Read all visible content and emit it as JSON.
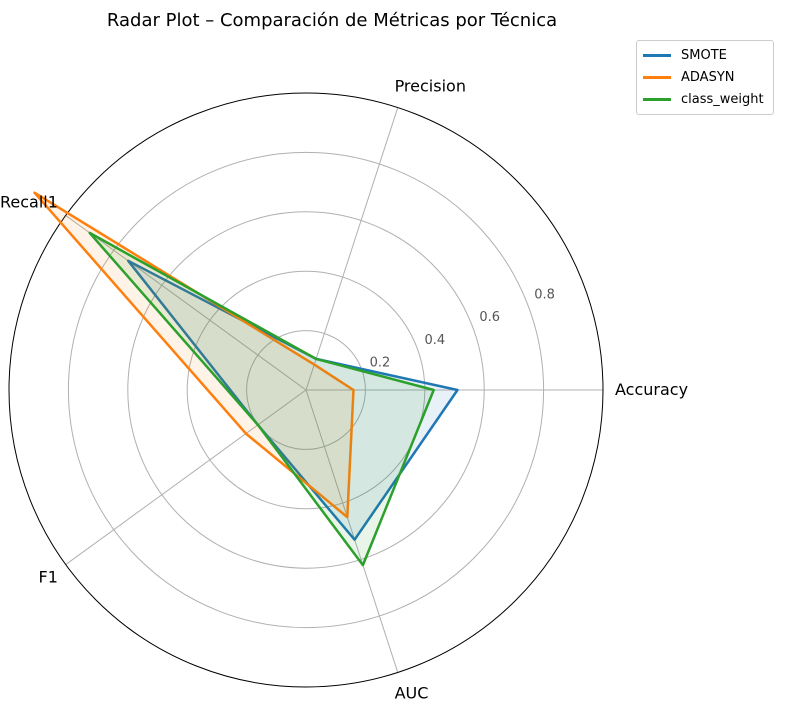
{
  "chart_data": {
    "type": "radar",
    "title": "Radar Plot – Comparación de Métricas por Técnica",
    "axes": [
      "Accuracy",
      "Precision",
      "Recall1",
      "F1",
      "AUC"
    ],
    "rticks": [
      0.2,
      0.4,
      0.6,
      0.8
    ],
    "rlim": [
      0,
      1.0
    ],
    "grid": true,
    "legend_position": "top-right",
    "series": [
      {
        "name": "SMOTE",
        "color": "#1f77b4",
        "values": [
          0.51,
          0.11,
          0.74,
          0.2,
          0.53
        ]
      },
      {
        "name": "ADASYN",
        "color": "#ff7f0e",
        "values": [
          0.16,
          0.09,
          1.13,
          0.25,
          0.45
        ]
      },
      {
        "name": "class_weight",
        "color": "#2ca02c",
        "values": [
          0.43,
          0.11,
          0.9,
          0.2,
          0.62
        ]
      }
    ]
  }
}
